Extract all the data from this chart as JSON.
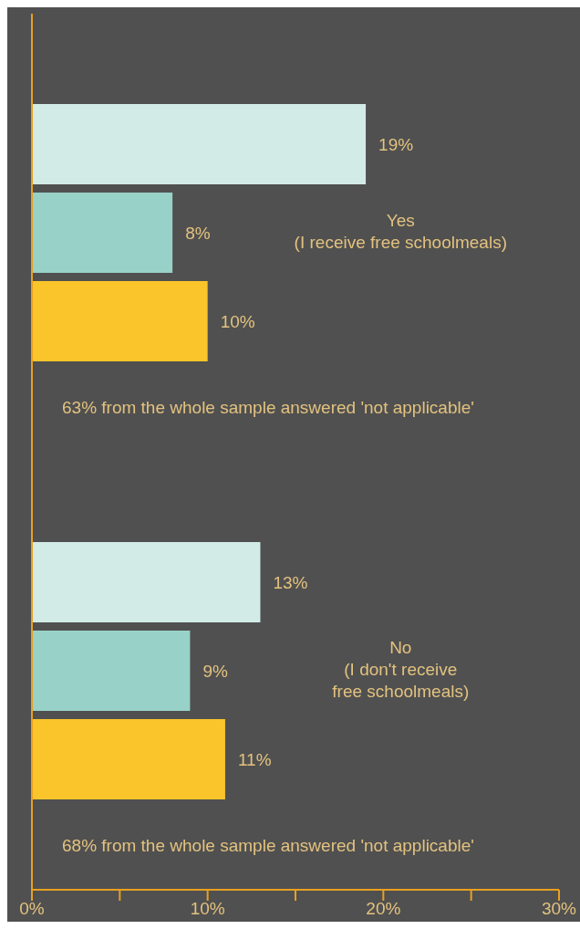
{
  "chart_data": {
    "type": "bar",
    "orientation": "horizontal",
    "categories": [
      "Yes\n(I receive free schoolmeals)",
      "No\n(I don't receive\nfree schoolmeals)"
    ],
    "series": [
      {
        "color": "#d3ebe6",
        "values": [
          19,
          13
        ],
        "value_labels": [
          "19%",
          "13%"
        ]
      },
      {
        "color": "#98d1c8",
        "values": [
          8,
          9
        ],
        "value_labels": [
          "8%",
          "9%"
        ]
      },
      {
        "color": "#f9c52a",
        "values": [
          10,
          11
        ],
        "value_labels": [
          "10%",
          "11%"
        ]
      }
    ],
    "xlim": [
      0,
      30
    ],
    "xticks": [
      {
        "value": 0,
        "label": "0%"
      },
      {
        "value": 5,
        "label": null
      },
      {
        "value": 10,
        "label": "10%"
      },
      {
        "value": 15,
        "label": null
      },
      {
        "value": 20,
        "label": "20%"
      },
      {
        "value": 25,
        "label": null
      },
      {
        "value": 30,
        "label": "30%"
      }
    ],
    "annotations": [
      "63% from the whole sample answered 'not applicable'",
      "68% from the whole sample answered 'not applicable'"
    ],
    "grid": false,
    "legend": false
  }
}
